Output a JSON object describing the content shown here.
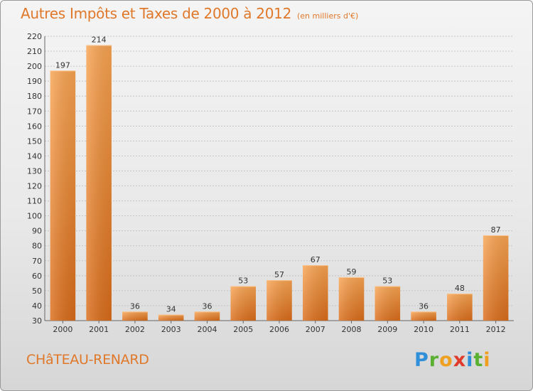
{
  "chart_data": {
    "type": "bar",
    "title": "Autres Impôts et Taxes de 2000 à 2012",
    "subtitle": "(en milliers d'€)",
    "categories": [
      "2000",
      "2001",
      "2002",
      "2003",
      "2004",
      "2005",
      "2006",
      "2007",
      "2008",
      "2009",
      "2010",
      "2011",
      "2012"
    ],
    "values": [
      197,
      214,
      36,
      34,
      36,
      53,
      57,
      67,
      59,
      53,
      36,
      48,
      87
    ],
    "ylim": [
      30,
      220
    ],
    "yticks": [
      30,
      40,
      50,
      60,
      70,
      80,
      90,
      100,
      110,
      120,
      130,
      140,
      150,
      160,
      170,
      180,
      190,
      200,
      210,
      220
    ],
    "grid": true,
    "bar_color": "#f08a2c"
  },
  "footer": {
    "commune": "CHâTEAU-RENARD",
    "logo_letters": [
      {
        "ch": "P",
        "color": "#2f8fd8"
      },
      {
        "ch": "r",
        "color": "#5ab030"
      },
      {
        "ch": "o",
        "color": "#f0a020"
      },
      {
        "ch": "x",
        "color": "#e03a2a"
      },
      {
        "ch": "i",
        "color": "#2f8fd8"
      },
      {
        "ch": "t",
        "color": "#5ab030"
      },
      {
        "ch": "i",
        "color": "#f0a020"
      }
    ]
  }
}
